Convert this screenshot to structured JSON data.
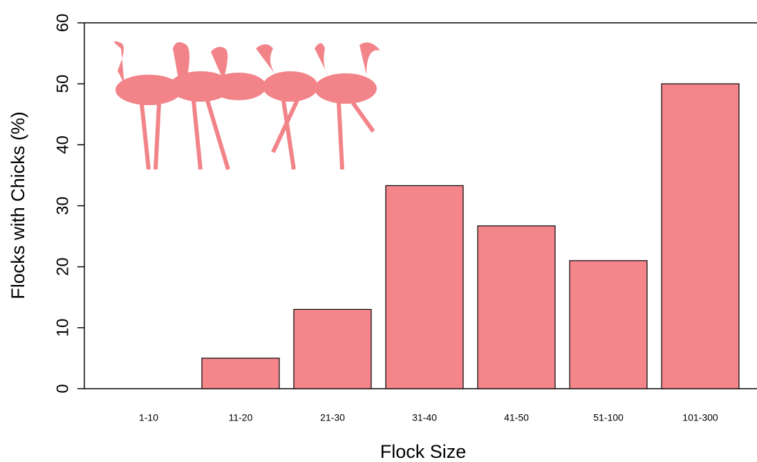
{
  "chart_data": {
    "type": "bar",
    "categories": [
      "1-10",
      "11-20",
      "21-30",
      "31-40",
      "41-50",
      "51-100",
      "101-300"
    ],
    "values": [
      0,
      5,
      13,
      33.3,
      26.7,
      21,
      50
    ],
    "color": "#f4868b",
    "xlabel": "Flock Size",
    "ylabel": "Flocks with Chicks (%)",
    "ylim": [
      0,
      60
    ],
    "yticks": [
      0,
      10,
      20,
      30,
      40,
      50,
      60
    ],
    "grid": false
  }
}
